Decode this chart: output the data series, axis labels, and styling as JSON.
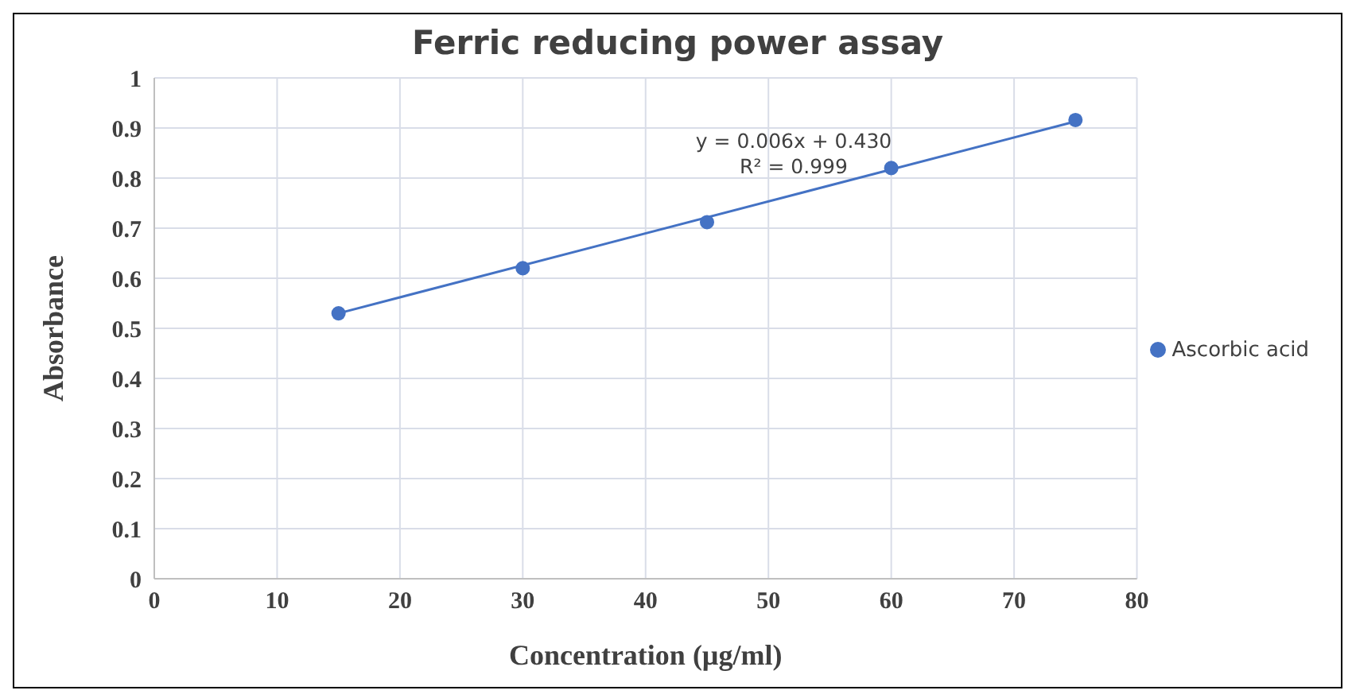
{
  "chart_data": {
    "type": "scatter",
    "title": "Ferric reducing power assay",
    "xlabel": "Concentration (µg/ml)",
    "ylabel": "Absorbance",
    "xlim": [
      0,
      80
    ],
    "xticks": [
      0,
      10,
      20,
      30,
      40,
      50,
      60,
      70,
      80
    ],
    "ylim": [
      0,
      1
    ],
    "yticks": [
      0,
      0.1,
      0.2,
      0.3,
      0.4,
      0.5,
      0.6,
      0.7,
      0.8,
      0.9,
      1
    ],
    "grid": true,
    "legend": "right",
    "marker": "circle",
    "annotations": [
      "y = 0.006x + 0.430",
      "R² = 0.999"
    ],
    "series": [
      {
        "name": "Ascorbic acid",
        "color": "#4472c4",
        "x": [
          15,
          30,
          45,
          60,
          75
        ],
        "values": [
          0.53,
          0.62,
          0.712,
          0.82,
          0.916
        ]
      },
      {
        "type": "line",
        "color": "#4472c4",
        "x": [
          15,
          75
        ],
        "values": [
          0.53,
          0.913
        ],
        "line_style": "solid",
        "marker": "none"
      }
    ]
  }
}
